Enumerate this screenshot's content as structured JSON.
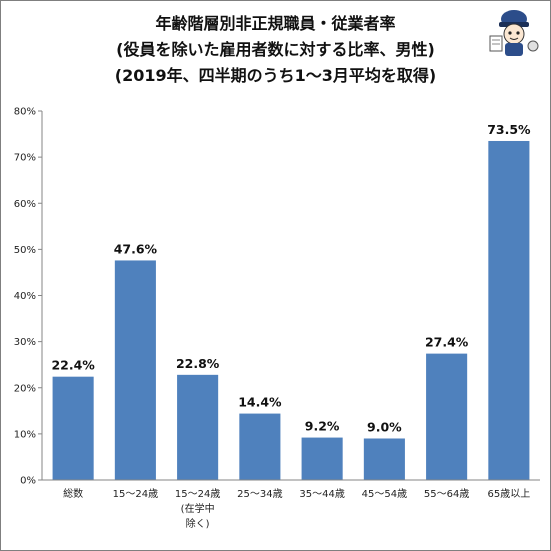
{
  "chart_data": {
    "type": "bar",
    "title": [
      "年齢階層別非正規職員・従業者率",
      "(役員を除いた雇用者数に対する比率、男性)",
      "(2019年、四半期のうち1～3月平均を取得)"
    ],
    "categories": [
      [
        "総数"
      ],
      [
        "15～24歳"
      ],
      [
        "15～24歳",
        "(在学中",
        "除く)"
      ],
      [
        "25～34歳"
      ],
      [
        "35～44歳"
      ],
      [
        "45～54歳"
      ],
      [
        "55～64歳"
      ],
      [
        "65歳以上"
      ]
    ],
    "values": [
      22.4,
      47.6,
      22.8,
      14.4,
      9.2,
      9.0,
      27.4,
      73.5
    ],
    "data_labels": [
      "22.4%",
      "47.6%",
      "22.8%",
      "14.4%",
      "9.2%",
      "9.0%",
      "27.4%",
      "73.5%"
    ],
    "ylim": [
      0,
      80
    ],
    "yticks": [
      0,
      10,
      20,
      30,
      40,
      50,
      60,
      70,
      80
    ],
    "ytick_labels": [
      "0%",
      "10%",
      "20%",
      "30%",
      "40%",
      "50%",
      "60%",
      "70%",
      "80%"
    ],
    "xlabel": "",
    "ylabel": "",
    "grid": false,
    "legend": "none",
    "bar_color": "#4f81bd",
    "axis_color": "#868686"
  },
  "mascot_icon": "cartoon-mascot-icon"
}
